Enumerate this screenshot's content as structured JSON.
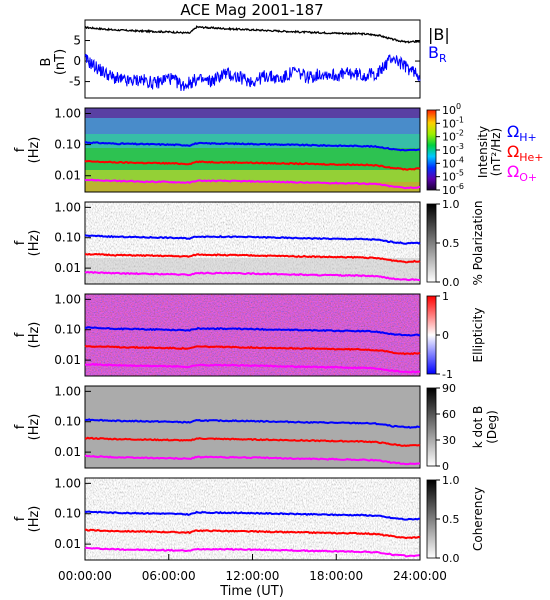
{
  "chart_data": {
    "title": "ACE Mag 2001-187",
    "xlabel": "Time (UT)",
    "x_range_hours": [
      0,
      24
    ],
    "x_ticks": [
      "00:00:00",
      "06:00:00",
      "12:00:00",
      "18:00:00",
      "24:00:00"
    ],
    "freq_ticks": [
      "1.00",
      "0.10",
      "0.01"
    ],
    "freq_range_hz": [
      0.003,
      1.5
    ],
    "freq_scale": "log",
    "gyro_freq_hz": {
      "type": "line",
      "x_hours": [
        0,
        2,
        4,
        6,
        7.5,
        8,
        10,
        12,
        14,
        16,
        18,
        20,
        21,
        22,
        23,
        24
      ],
      "series": [
        {
          "name": "ΩH+",
          "color": "#0000ff",
          "values": [
            0.118,
            0.108,
            0.104,
            0.1,
            0.095,
            0.11,
            0.108,
            0.105,
            0.1,
            0.096,
            0.092,
            0.09,
            0.085,
            0.072,
            0.065,
            0.068
          ]
        },
        {
          "name": "ΩHe+",
          "color": "#ff0000",
          "values": [
            0.029,
            0.027,
            0.026,
            0.025,
            0.024,
            0.028,
            0.027,
            0.026,
            0.025,
            0.024,
            0.023,
            0.0225,
            0.021,
            0.018,
            0.016,
            0.017
          ]
        },
        {
          "name": "ΩO+",
          "color": "#ff00ff",
          "values": [
            0.0074,
            0.0068,
            0.0065,
            0.0063,
            0.006,
            0.0069,
            0.0068,
            0.0066,
            0.0063,
            0.006,
            0.0058,
            0.0056,
            0.0053,
            0.0045,
            0.0041,
            0.0042
          ]
        }
      ]
    },
    "charts": [
      {
        "type": "line",
        "id": "field",
        "ylabel": "B",
        "yunit": "(nT)",
        "ylim": [
          -9,
          10
        ],
        "yticks": [
          5,
          0,
          -5
        ],
        "legend": [
          "|B|",
          "BR"
        ],
        "legend_placement": "right",
        "series": [
          {
            "name": "|B|",
            "color": "#000000",
            "x_hours": [
              0,
              2,
              4,
              6,
              7.5,
              8,
              10,
              12,
              14,
              16,
              18,
              20,
              21,
              22,
              23,
              24
            ],
            "values": [
              8.2,
              7.6,
              7.3,
              7.1,
              6.8,
              8.3,
              7.9,
              7.6,
              7.3,
              7.0,
              6.8,
              6.6,
              6.3,
              5.3,
              4.6,
              4.8
            ]
          },
          {
            "name": "BR",
            "color": "#0000ff",
            "x_hours": [
              0,
              1,
              2,
              3,
              4,
              5,
              6,
              7,
              8,
              9,
              10,
              11,
              12,
              13,
              14,
              15,
              16,
              17,
              18,
              19,
              20,
              21,
              22,
              23,
              24
            ],
            "values": [
              0.5,
              -2.0,
              -4.0,
              -5.0,
              -4.5,
              -5.5,
              -4.0,
              -6.0,
              -4.5,
              -5.0,
              -3.0,
              -4.0,
              -5.0,
              -3.5,
              -4.5,
              -2.5,
              -4.0,
              -3.0,
              -3.5,
              -3.0,
              -3.5,
              -3.0,
              1.0,
              -1.5,
              -3.5
            ]
          }
        ]
      },
      {
        "type": "heatmap",
        "id": "intensity",
        "ylabel": "f",
        "yunit": "(Hz)",
        "colorbar_label": "Intensity",
        "colorbar_unit": "(nT²/Hz)",
        "colorbar_ticks": [
          "10^0",
          "10^-1",
          "10^-2",
          "10^-3",
          "10^-4",
          "10^-5",
          "10^-6"
        ],
        "legend": [
          "ΩH+",
          "ΩHe+",
          "ΩO+"
        ],
        "legend_colors": [
          "#0000ff",
          "#ff0000",
          "#ff00ff"
        ]
      },
      {
        "type": "heatmap",
        "id": "polarization",
        "ylabel": "f",
        "yunit": "(Hz)",
        "colorbar_label": "% Polarization",
        "colorbar_ticks": [
          "1.0",
          "0.5",
          "0.0"
        ]
      },
      {
        "type": "heatmap",
        "id": "ellipticity",
        "ylabel": "f",
        "yunit": "(Hz)",
        "colorbar_label": "Ellipticity",
        "colorbar_ticks": [
          "1",
          "0",
          "-1"
        ]
      },
      {
        "type": "heatmap",
        "id": "kdotb",
        "ylabel": "f",
        "yunit": "(Hz)",
        "colorbar_label": "k dot B",
        "colorbar_unit": "(Deg)",
        "colorbar_ticks": [
          "90",
          "60",
          "30",
          "0"
        ]
      },
      {
        "type": "heatmap",
        "id": "coherency",
        "ylabel": "f",
        "yunit": "(Hz)",
        "colorbar_label": "Coherency",
        "colorbar_ticks": [
          "1.0",
          "0.5",
          "0.0"
        ]
      }
    ]
  }
}
